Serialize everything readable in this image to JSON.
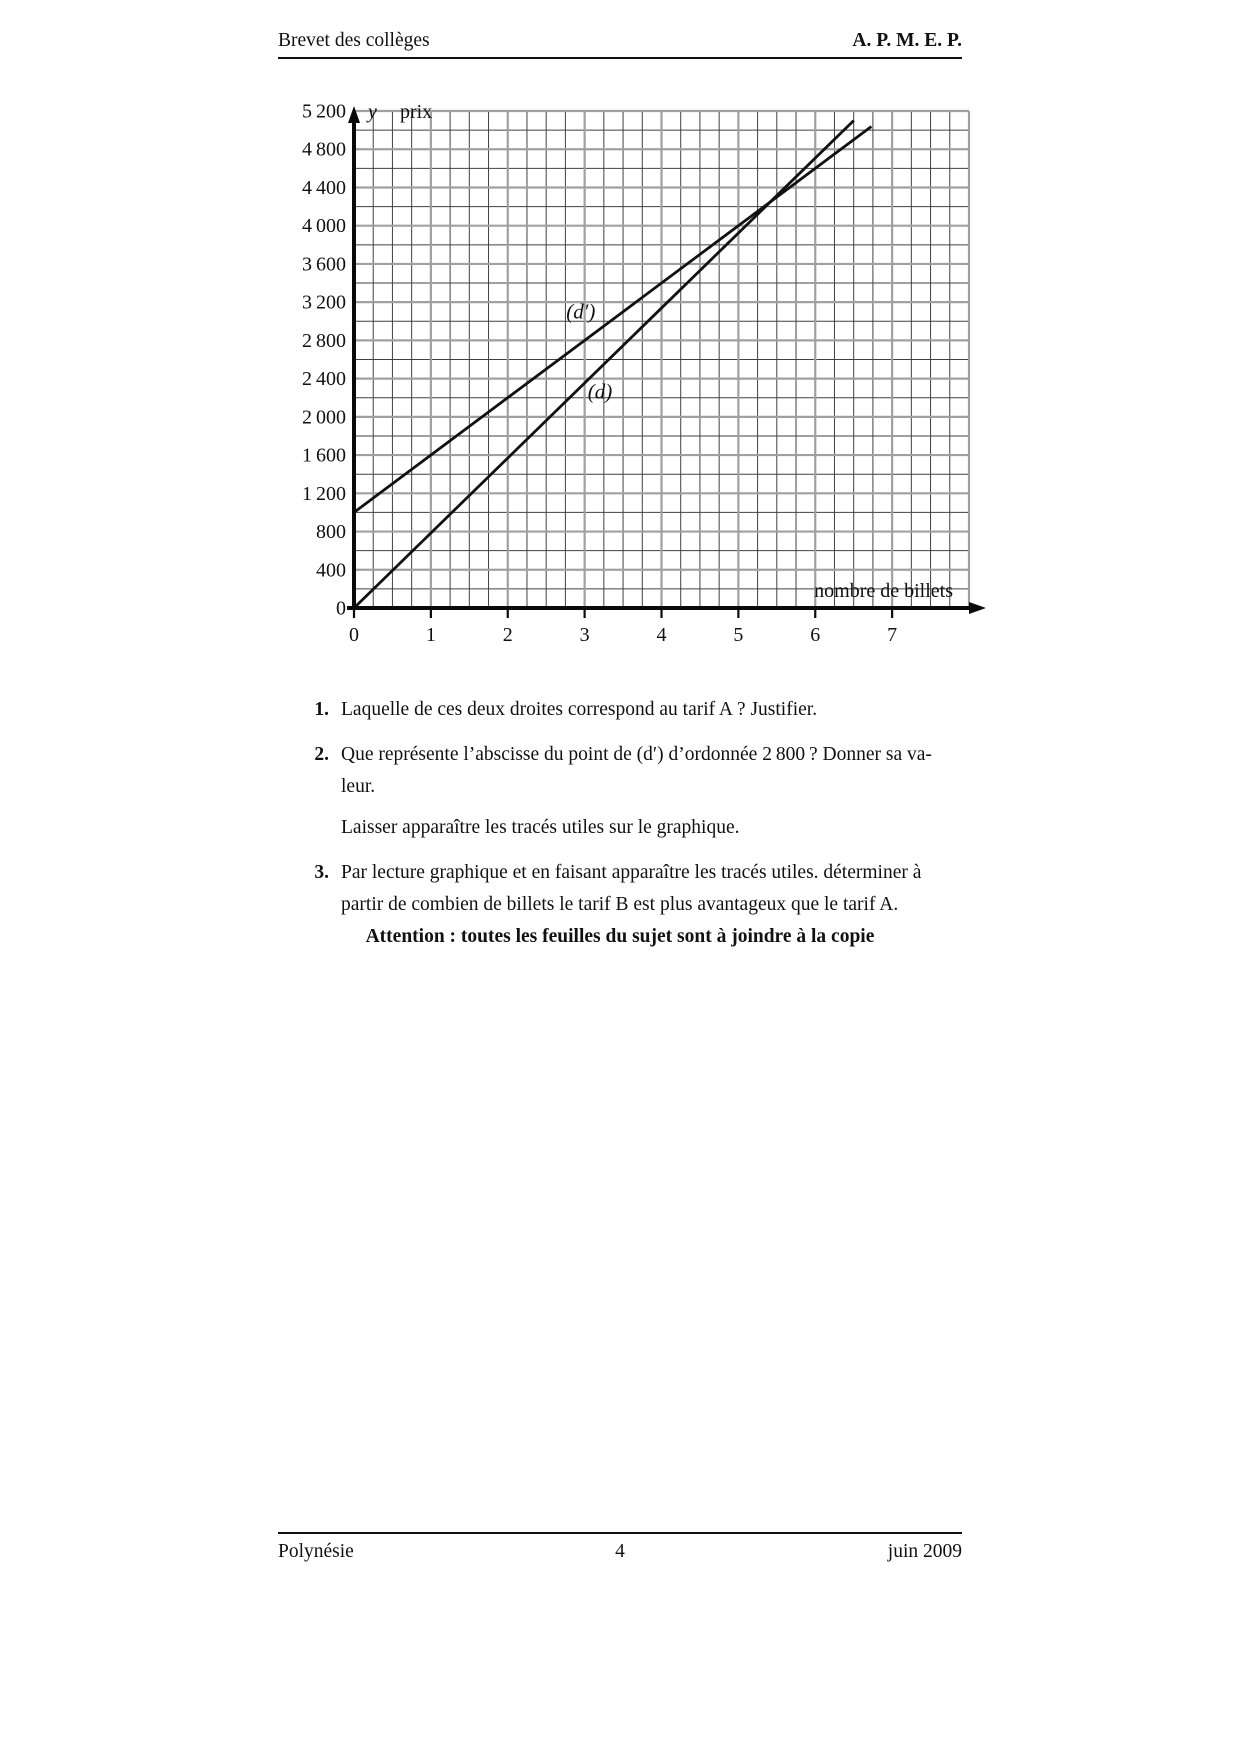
{
  "header": {
    "left": "Brevet des collèges",
    "right": "A. P. M. E. P."
  },
  "footer": {
    "left": "Polynésie",
    "page_number": "4",
    "right": "juin 2009"
  },
  "notice": "Attention : toutes les feuilles du sujet sont à joindre à la copie",
  "questions": [
    {
      "number": "1.",
      "lines": [
        "Laquelle de ces deux droites correspond au tarif A ? Justifier."
      ]
    },
    {
      "number": "2.",
      "lines": [
        "Que représente l’abscisse du point de (d′) d’ordonnée 2 800 ? Donner sa va-",
        "leur.",
        "Laisser apparaître les tracés utiles sur le graphique."
      ]
    },
    {
      "number": "3.",
      "lines": [
        "Par lecture graphique et en faisant apparaître les tracés utiles. déterminer à",
        "partir de combien de billets le tarif B est plus avantageux que le tarif A."
      ]
    }
  ],
  "chart_data": {
    "type": "line",
    "title": "",
    "y_axis_var": "y",
    "ylabel": "prix",
    "xlabel": "nombre de billets",
    "x_range": [
      0,
      8
    ],
    "y_range": [
      0,
      5200
    ],
    "minor_x_step": 0.25,
    "minor_y_step": 200,
    "major_x_step": 1,
    "major_y_step": 400,
    "grid": "on",
    "x_ticks": [
      0,
      1,
      2,
      3,
      4,
      5,
      6,
      7
    ],
    "y_tick_values": [
      0,
      400,
      800,
      1200,
      1600,
      2000,
      2400,
      2800,
      3200,
      3600,
      4000,
      4400,
      4800,
      5200
    ],
    "y_tick_labels": [
      "0",
      "400",
      "800",
      "1 200",
      "1 600",
      "2 000",
      "2 400",
      "2 800",
      "3 200",
      "3 600",
      "4 000",
      "4 400",
      "4 800",
      "5 200"
    ],
    "series": [
      {
        "name": "(d)",
        "points": [
          [
            0,
            0
          ],
          [
            6.5,
            5100
          ]
        ]
      },
      {
        "name": "(d′)",
        "points": [
          [
            0,
            1000
          ],
          [
            6.73,
            5038
          ]
        ]
      }
    ],
    "series_labels": [
      {
        "text": "(d′)",
        "x": 2.95,
        "y": 3030
      },
      {
        "text": "(d)",
        "x": 3.2,
        "y": 2190
      }
    ],
    "colors": {
      "line": "#111111",
      "grid_minor": "#404040",
      "grid_major": "#a0a0a0",
      "axis": "#0a0a0a"
    }
  }
}
